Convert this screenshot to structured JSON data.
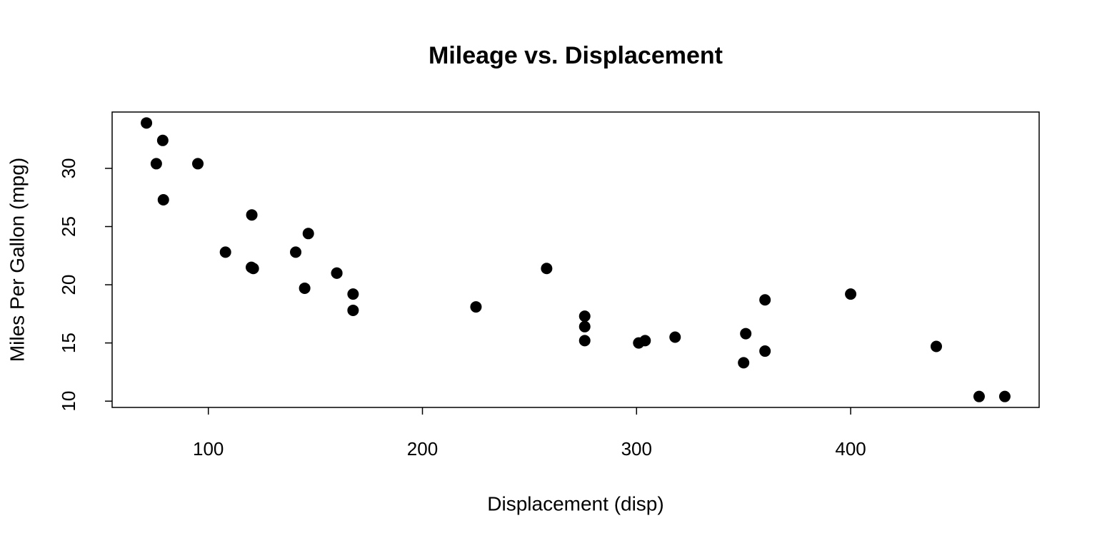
{
  "chart_data": {
    "type": "scatter",
    "title": "Mileage vs. Displacement",
    "x_label": "Displacement (disp)",
    "y_label": "Miles Per Gallon (mpg)",
    "x": [
      160,
      160,
      108,
      258,
      360,
      225,
      360,
      146.7,
      140.8,
      167.6,
      167.6,
      275.8,
      275.8,
      275.8,
      472,
      460,
      440,
      78.7,
      75.7,
      71.1,
      120.1,
      318,
      304,
      350,
      400,
      79,
      120.3,
      95.1,
      351,
      145,
      301,
      121
    ],
    "y": [
      21.0,
      21.0,
      22.8,
      21.4,
      18.7,
      18.1,
      14.3,
      24.4,
      22.8,
      19.2,
      17.8,
      16.4,
      17.3,
      15.2,
      10.4,
      10.4,
      14.7,
      32.4,
      30.4,
      33.9,
      21.5,
      15.5,
      15.2,
      13.3,
      19.2,
      27.3,
      26.0,
      30.4,
      15.8,
      19.7,
      15.0,
      21.4
    ],
    "color": "#000000",
    "xlim": [
      55.064,
      488.036
    ],
    "ylim": [
      9.46,
      34.84
    ],
    "xticks": [
      100,
      200,
      300,
      400
    ],
    "yticks": [
      10,
      15,
      20,
      25,
      30
    ]
  }
}
